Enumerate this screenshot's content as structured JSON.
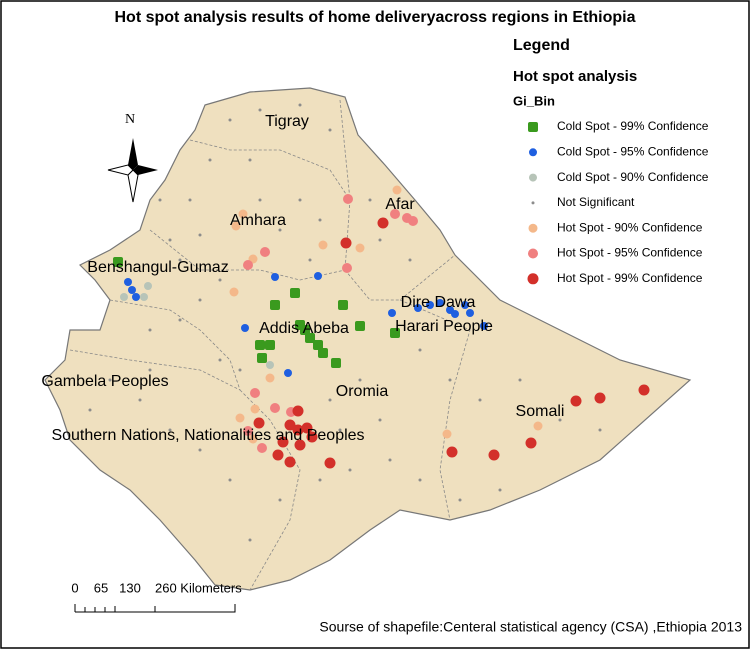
{
  "title": "Hot spot analysis results of home deliveryacross regions in Ethiopia",
  "legend": {
    "title": "Legend",
    "subtitle": "Hot spot analysis",
    "field": "Gi_Bin",
    "items": [
      {
        "label": "Cold Spot - 99% Confidence",
        "color": "#3a9a1e"
      },
      {
        "label": "Cold Spot - 95% Confidence",
        "color": "#1f5fe0"
      },
      {
        "label": "Cold Spot - 90% Confidence",
        "color": "#b7c4b8"
      },
      {
        "label": "Not Significant",
        "color": "#8c8c8c"
      },
      {
        "label": "Hot Spot - 90% Confidence",
        "color": "#f4b88a"
      },
      {
        "label": "Hot Spot - 95% Confidence",
        "color": "#f08080"
      },
      {
        "label": "Hot Spot - 99% Confidence",
        "color": "#d3302a"
      }
    ]
  },
  "regions": [
    "Tigray",
    "Afar",
    "Amhara",
    "Benshangul-Gumaz",
    "Dire Dawa",
    "Addis Abeba",
    "Harari People",
    "Oromia",
    "Gambela Peoples",
    "Somali",
    "Southern Nations, Nationalities and Peoples"
  ],
  "north": "N",
  "scale": [
    "0",
    "65",
    "130",
    "260 Kilometers"
  ],
  "source": "Sourse of shapefile:Centeral statistical agency (CSA) ,Ethiopia 2013"
}
